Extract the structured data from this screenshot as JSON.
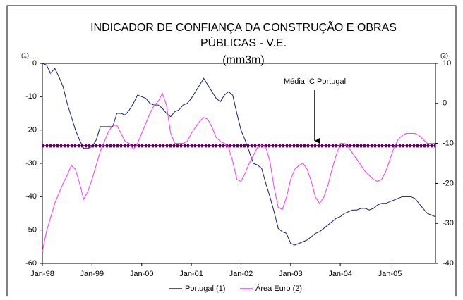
{
  "chart_data": {
    "type": "line",
    "title": [
      "INDICADOR DE CONFIANÇA DA CONSTRUÇÃO E OBRAS",
      "PÚBLICAS - V.E.",
      "(mm3m)"
    ],
    "y_axis_label": "(1)",
    "y2_axis_label": "(2)",
    "categories": [
      "Jan-98",
      null,
      null,
      null,
      null,
      null,
      null,
      null,
      null,
      null,
      null,
      null,
      "Jan-99",
      null,
      null,
      null,
      null,
      null,
      null,
      null,
      null,
      null,
      null,
      null,
      "Jan-00",
      null,
      null,
      null,
      null,
      null,
      null,
      null,
      null,
      null,
      null,
      null,
      "Jan-01",
      null,
      null,
      null,
      null,
      null,
      null,
      null,
      null,
      null,
      null,
      null,
      "Jan-02",
      null,
      null,
      null,
      null,
      null,
      null,
      null,
      null,
      null,
      null,
      null,
      "Jan-03",
      null,
      null,
      null,
      null,
      null,
      null,
      null,
      null,
      null,
      null,
      null,
      "Jan-04",
      null,
      null,
      null,
      null,
      null,
      null,
      null,
      null,
      null,
      null,
      null,
      "Jan-05",
      null,
      null,
      null,
      null,
      null,
      null,
      null,
      null,
      null,
      null,
      null
    ],
    "series": [
      {
        "name": "Portugal (1)",
        "color": "#1a1a7a",
        "values": [
          0,
          -0.5,
          -3,
          -1.5,
          -4,
          -7,
          -12,
          -16,
          -20,
          -23,
          -25.5,
          -25.5,
          -25,
          -23,
          -19,
          -19,
          -19,
          -19,
          -15,
          -15,
          -15.5,
          -14,
          -12,
          -9.5,
          -10,
          -10.5,
          -12,
          -12.5,
          -12.5,
          -13.5,
          -15,
          -16,
          -14.5,
          -14,
          -12.5,
          -12,
          -10.5,
          -8.5,
          -6.5,
          -4.5,
          -6.5,
          -8.5,
          -10.5,
          -11.5,
          -9.5,
          -8.5,
          -9.5,
          -15,
          -20,
          -23,
          -26.5,
          -30,
          -30.5,
          -31.5,
          -36,
          -40,
          -44.5,
          -49.5,
          -50.5,
          -51,
          -54,
          -54.5,
          -54,
          -53.5,
          -53,
          -52,
          -51,
          -50.5,
          -49.5,
          -48.5,
          -47.5,
          -46.5,
          -46,
          -45,
          -44.5,
          -44,
          -44,
          -43.5,
          -43.5,
          -44,
          -43.5,
          -42.5,
          -42,
          -42,
          -41.5,
          -41,
          -40.5,
          -40,
          -40,
          -40,
          -40.5,
          -42,
          -43.5,
          -45,
          -45.5,
          -46
        ]
      },
      {
        "name": "Área Euro (2)",
        "color": "#ff33ff",
        "axis": "y2",
        "values": [
          -37,
          -32,
          -28.5,
          -25,
          -22.5,
          -20,
          -18,
          -15.5,
          -16.5,
          -20,
          -24,
          -22,
          -19,
          -15.5,
          -12,
          -9.5,
          -7,
          -5.5,
          -5.5,
          -7.5,
          -9.5,
          -10,
          -11.5,
          -10,
          -7.5,
          -5,
          -2.5,
          -0.5,
          0.5,
          2.5,
          -0.5,
          -7.5,
          -10,
          -10,
          -10,
          -9.5,
          -7.5,
          -6,
          -4.5,
          -3.5,
          -4,
          -6,
          -8.5,
          -9.5,
          -10,
          -11,
          -14.5,
          -19,
          -19.5,
          -17.5,
          -15,
          -13,
          -11,
          -10.5,
          -11,
          -14.5,
          -21,
          -26,
          -26.5,
          -23.5,
          -19,
          -16.5,
          -15.5,
          -15,
          -16.5,
          -19.5,
          -23.5,
          -25,
          -23.5,
          -20.5,
          -16.5,
          -13,
          -10,
          -10,
          -11,
          -12.5,
          -14,
          -15.5,
          -17,
          -18,
          -19,
          -19.5,
          -19,
          -17,
          -14,
          -11,
          -9,
          -8,
          -7.5,
          -7.5,
          -7.5,
          -8,
          -9,
          -10,
          -10,
          -10
        ]
      }
    ],
    "reference_line": {
      "label": "Média IC Portugal",
      "value": -24.7,
      "color": "#660066"
    },
    "ylim": [
      -60,
      0
    ],
    "yticks": [
      0,
      -10,
      -20,
      -30,
      -40,
      -50,
      -60
    ],
    "y2lim": [
      -40,
      10
    ],
    "y2ticks": [
      10,
      0,
      -10,
      -20,
      -30,
      -40
    ],
    "legend": "bottom"
  }
}
